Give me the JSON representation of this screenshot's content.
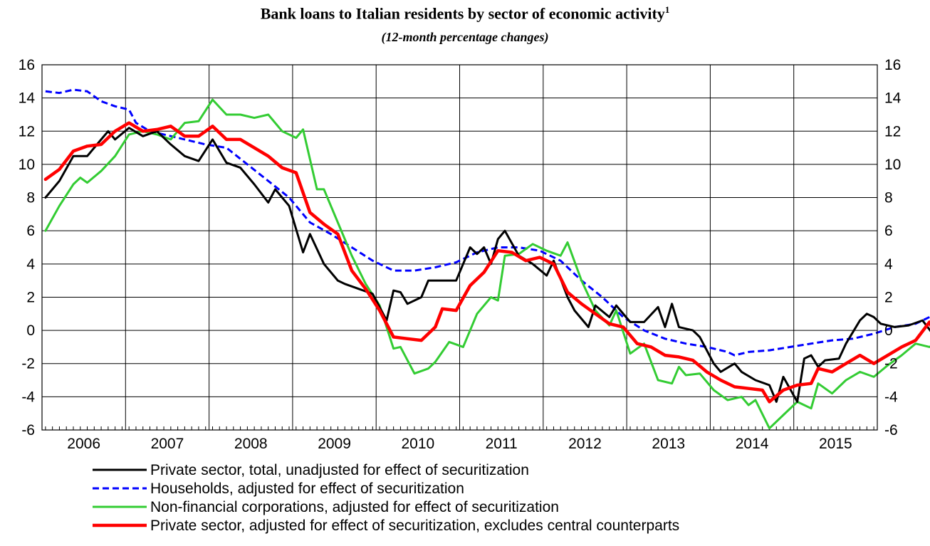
{
  "chart_data": {
    "type": "line",
    "title": "Bank loans to Italian residents by sector of economic activity",
    "title_footnote": "1",
    "subtitle": "(12-month percentage changes)",
    "ylim": [
      -6,
      16
    ],
    "yticks": [
      "-6",
      "-4",
      "-2",
      "0",
      "2",
      "4",
      "6",
      "8",
      "10",
      "12",
      "14",
      "16"
    ],
    "yticks_right": [
      "-6",
      "-4",
      "-2",
      "0",
      "2",
      "4",
      "6",
      "8",
      "10",
      "12",
      "14",
      "16"
    ],
    "x_start": "2006-01",
    "x_end": "2015-12",
    "year_labels": [
      "2006",
      "2007",
      "2008",
      "2009",
      "2010",
      "2011",
      "2012",
      "2013",
      "2014",
      "2015"
    ],
    "grid": true,
    "legend_position": "bottom",
    "series": [
      {
        "name": "Private sector, total, unadjusted for effect of securitization",
        "color": "#000000",
        "style": "solid",
        "points": [
          [
            "2006-01",
            8.0
          ],
          [
            "2006-03",
            9.0
          ],
          [
            "2006-05",
            10.5
          ],
          [
            "2006-07",
            10.5
          ],
          [
            "2006-09",
            11.5
          ],
          [
            "2006-10",
            12.0
          ],
          [
            "2006-11",
            11.5
          ],
          [
            "2007-01",
            12.2
          ],
          [
            "2007-03",
            11.7
          ],
          [
            "2007-05",
            12.0
          ],
          [
            "2007-07",
            11.2
          ],
          [
            "2007-09",
            10.5
          ],
          [
            "2007-11",
            10.2
          ],
          [
            "2008-01",
            11.5
          ],
          [
            "2008-03",
            10.1
          ],
          [
            "2008-05",
            9.8
          ],
          [
            "2008-07",
            8.8
          ],
          [
            "2008-09",
            7.7
          ],
          [
            "2008-10",
            8.5
          ],
          [
            "2008-12",
            7.5
          ],
          [
            "2009-02",
            4.7
          ],
          [
            "2009-03",
            5.8
          ],
          [
            "2009-05",
            4.0
          ],
          [
            "2009-07",
            3.0
          ],
          [
            "2009-08",
            2.8
          ],
          [
            "2009-10",
            2.5
          ],
          [
            "2009-12",
            2.2
          ],
          [
            "2010-02",
            0.6
          ],
          [
            "2010-03",
            2.4
          ],
          [
            "2010-04",
            2.3
          ],
          [
            "2010-05",
            1.6
          ],
          [
            "2010-07",
            2.0
          ],
          [
            "2010-08",
            3.0
          ],
          [
            "2010-10",
            3.0
          ],
          [
            "2010-12",
            3.0
          ],
          [
            "2011-01",
            4.0
          ],
          [
            "2011-02",
            5.0
          ],
          [
            "2011-03",
            4.6
          ],
          [
            "2011-04",
            5.0
          ],
          [
            "2011-05",
            4.0
          ],
          [
            "2011-06",
            5.5
          ],
          [
            "2011-07",
            6.0
          ],
          [
            "2011-09",
            4.5
          ],
          [
            "2011-11",
            4.0
          ],
          [
            "2012-01",
            3.3
          ],
          [
            "2012-02",
            4.2
          ],
          [
            "2012-04",
            2.0
          ],
          [
            "2012-05",
            1.2
          ],
          [
            "2012-07",
            0.2
          ],
          [
            "2012-08",
            1.5
          ],
          [
            "2012-10",
            0.8
          ],
          [
            "2012-11",
            1.5
          ],
          [
            "2013-01",
            0.5
          ],
          [
            "2013-03",
            0.5
          ],
          [
            "2013-05",
            1.4
          ],
          [
            "2013-06",
            0.2
          ],
          [
            "2013-07",
            1.6
          ],
          [
            "2013-08",
            0.2
          ],
          [
            "2013-10",
            0.0
          ],
          [
            "2013-11",
            -0.4
          ],
          [
            "2014-01",
            -2.0
          ],
          [
            "2014-02",
            -2.5
          ],
          [
            "2014-04",
            -2.0
          ],
          [
            "2014-05",
            -2.5
          ],
          [
            "2014-07",
            -3.0
          ],
          [
            "2014-09",
            -3.3
          ],
          [
            "2014-10",
            -4.3
          ],
          [
            "2014-11",
            -2.8
          ],
          [
            "2015-01",
            -4.3
          ],
          [
            "2015-02",
            -1.7
          ],
          [
            "2015-03",
            -1.5
          ],
          [
            "2015-04",
            -2.2
          ],
          [
            "2015-05",
            -1.8
          ],
          [
            "2015-07",
            -1.7
          ],
          [
            "2015-08",
            -0.8
          ],
          [
            "2015-10",
            0.6
          ],
          [
            "2015-11",
            1.0
          ],
          [
            "2015-12",
            0.8
          ],
          [
            "2016-01",
            0.4
          ],
          [
            "2016-03",
            0.2
          ],
          [
            "2016-05",
            0.3
          ],
          [
            "2016-07",
            0.6
          ],
          [
            "2016-09",
            -0.5
          ]
        ]
      },
      {
        "name": "Households, adjusted for effect of securitization",
        "color": "#0000ff",
        "style": "dashed",
        "points": [
          [
            "2006-01",
            14.4
          ],
          [
            "2006-03",
            14.3
          ],
          [
            "2006-05",
            14.5
          ],
          [
            "2006-07",
            14.4
          ],
          [
            "2006-09",
            13.8
          ],
          [
            "2006-11",
            13.5
          ],
          [
            "2007-01",
            13.3
          ],
          [
            "2007-02",
            12.5
          ],
          [
            "2007-04",
            12.0
          ],
          [
            "2007-06",
            11.8
          ],
          [
            "2007-09",
            11.5
          ],
          [
            "2007-12",
            11.2
          ],
          [
            "2008-03",
            11.0
          ],
          [
            "2008-06",
            10.0
          ],
          [
            "2008-09",
            9.0
          ],
          [
            "2008-12",
            8.0
          ],
          [
            "2009-03",
            6.5
          ],
          [
            "2009-06",
            5.8
          ],
          [
            "2009-09",
            5.0
          ],
          [
            "2009-12",
            4.2
          ],
          [
            "2010-03",
            3.6
          ],
          [
            "2010-06",
            3.6
          ],
          [
            "2010-09",
            3.8
          ],
          [
            "2010-12",
            4.1
          ],
          [
            "2011-03",
            4.7
          ],
          [
            "2011-06",
            5.0
          ],
          [
            "2011-09",
            5.0
          ],
          [
            "2011-12",
            4.8
          ],
          [
            "2012-03",
            4.2
          ],
          [
            "2012-06",
            3.0
          ],
          [
            "2012-09",
            2.0
          ],
          [
            "2012-12",
            0.8
          ],
          [
            "2013-03",
            0.0
          ],
          [
            "2013-06",
            -0.5
          ],
          [
            "2013-09",
            -0.8
          ],
          [
            "2013-12",
            -1.0
          ],
          [
            "2014-03",
            -1.3
          ],
          [
            "2014-04",
            -1.5
          ],
          [
            "2014-06",
            -1.3
          ],
          [
            "2014-09",
            -1.2
          ],
          [
            "2014-12",
            -1.0
          ],
          [
            "2015-03",
            -0.8
          ],
          [
            "2015-06",
            -0.6
          ],
          [
            "2015-09",
            -0.5
          ],
          [
            "2015-12",
            -0.2
          ],
          [
            "2016-03",
            0.2
          ],
          [
            "2016-06",
            0.4
          ],
          [
            "2016-08",
            0.8
          ],
          [
            "2016-09",
            0.7
          ]
        ]
      },
      {
        "name": "Non-financial corporations, adjusted for effect of securitization",
        "color": "#33cc33",
        "style": "solid",
        "points": [
          [
            "2006-01",
            6.0
          ],
          [
            "2006-03",
            7.5
          ],
          [
            "2006-05",
            8.8
          ],
          [
            "2006-06",
            9.2
          ],
          [
            "2006-07",
            8.9
          ],
          [
            "2006-09",
            9.6
          ],
          [
            "2006-11",
            10.5
          ],
          [
            "2007-01",
            11.8
          ],
          [
            "2007-03",
            12.0
          ],
          [
            "2007-05",
            11.8
          ],
          [
            "2007-07",
            11.5
          ],
          [
            "2007-09",
            12.5
          ],
          [
            "2007-11",
            12.6
          ],
          [
            "2008-01",
            13.9
          ],
          [
            "2008-03",
            13.0
          ],
          [
            "2008-05",
            13.0
          ],
          [
            "2008-07",
            12.8
          ],
          [
            "2008-09",
            13.0
          ],
          [
            "2008-11",
            12.0
          ],
          [
            "2009-01",
            11.6
          ],
          [
            "2009-02",
            12.1
          ],
          [
            "2009-04",
            8.5
          ],
          [
            "2009-05",
            8.5
          ],
          [
            "2009-07",
            6.5
          ],
          [
            "2009-09",
            4.5
          ],
          [
            "2009-11",
            2.8
          ],
          [
            "2010-01",
            1.5
          ],
          [
            "2010-03",
            -1.1
          ],
          [
            "2010-04",
            -1.0
          ],
          [
            "2010-06",
            -2.6
          ],
          [
            "2010-08",
            -2.3
          ],
          [
            "2010-09",
            -1.9
          ],
          [
            "2010-11",
            -0.7
          ],
          [
            "2011-01",
            -1.0
          ],
          [
            "2011-03",
            1.0
          ],
          [
            "2011-05",
            2.0
          ],
          [
            "2011-06",
            1.8
          ],
          [
            "2011-07",
            4.5
          ],
          [
            "2011-09",
            4.6
          ],
          [
            "2011-11",
            5.2
          ],
          [
            "2012-01",
            4.8
          ],
          [
            "2012-03",
            4.5
          ],
          [
            "2012-04",
            5.3
          ],
          [
            "2012-06",
            3.0
          ],
          [
            "2012-08",
            1.2
          ],
          [
            "2012-10",
            0.3
          ],
          [
            "2012-11",
            1.2
          ],
          [
            "2013-01",
            -1.4
          ],
          [
            "2013-03",
            -0.8
          ],
          [
            "2013-05",
            -3.0
          ],
          [
            "2013-07",
            -3.2
          ],
          [
            "2013-08",
            -2.2
          ],
          [
            "2013-09",
            -2.7
          ],
          [
            "2013-11",
            -2.6
          ],
          [
            "2014-01",
            -3.6
          ],
          [
            "2014-03",
            -4.2
          ],
          [
            "2014-05",
            -4.0
          ],
          [
            "2014-06",
            -4.5
          ],
          [
            "2014-07",
            -4.2
          ],
          [
            "2014-09",
            -5.9
          ],
          [
            "2014-11",
            -5.1
          ],
          [
            "2015-01",
            -4.3
          ],
          [
            "2015-03",
            -4.7
          ],
          [
            "2015-04",
            -3.2
          ],
          [
            "2015-06",
            -3.8
          ],
          [
            "2015-08",
            -3.0
          ],
          [
            "2015-10",
            -2.5
          ],
          [
            "2015-12",
            -2.8
          ],
          [
            "2016-02",
            -2.1
          ],
          [
            "2016-04",
            -1.5
          ],
          [
            "2016-06",
            -0.8
          ],
          [
            "2016-08",
            -1.0
          ],
          [
            "2016-09",
            -0.8
          ]
        ]
      },
      {
        "name": "Private sector, adjusted for effect of securitization, excludes central counterparts",
        "color": "#ff0000",
        "style": "solid",
        "points": [
          [
            "2006-01",
            9.1
          ],
          [
            "2006-03",
            9.7
          ],
          [
            "2006-05",
            10.8
          ],
          [
            "2006-07",
            11.1
          ],
          [
            "2006-09",
            11.2
          ],
          [
            "2006-11",
            12.0
          ],
          [
            "2007-01",
            12.5
          ],
          [
            "2007-03",
            12.0
          ],
          [
            "2007-05",
            12.1
          ],
          [
            "2007-07",
            12.3
          ],
          [
            "2007-09",
            11.7
          ],
          [
            "2007-11",
            11.7
          ],
          [
            "2008-01",
            12.3
          ],
          [
            "2008-03",
            11.5
          ],
          [
            "2008-05",
            11.5
          ],
          [
            "2008-07",
            11.0
          ],
          [
            "2008-09",
            10.5
          ],
          [
            "2008-11",
            9.8
          ],
          [
            "2009-01",
            9.5
          ],
          [
            "2009-03",
            7.1
          ],
          [
            "2009-05",
            6.4
          ],
          [
            "2009-07",
            5.8
          ],
          [
            "2009-09",
            3.6
          ],
          [
            "2009-11",
            2.5
          ],
          [
            "2010-01",
            1.2
          ],
          [
            "2010-03",
            -0.4
          ],
          [
            "2010-05",
            -0.5
          ],
          [
            "2010-07",
            -0.6
          ],
          [
            "2010-09",
            0.2
          ],
          [
            "2010-10",
            1.3
          ],
          [
            "2010-12",
            1.2
          ],
          [
            "2011-02",
            2.7
          ],
          [
            "2011-04",
            3.5
          ],
          [
            "2011-06",
            4.8
          ],
          [
            "2011-08",
            4.7
          ],
          [
            "2011-10",
            4.2
          ],
          [
            "2011-12",
            4.4
          ],
          [
            "2012-02",
            4.0
          ],
          [
            "2012-04",
            2.3
          ],
          [
            "2012-06",
            1.6
          ],
          [
            "2012-08",
            1.0
          ],
          [
            "2012-10",
            0.4
          ],
          [
            "2012-12",
            0.2
          ],
          [
            "2013-02",
            -0.8
          ],
          [
            "2013-04",
            -1.0
          ],
          [
            "2013-06",
            -1.5
          ],
          [
            "2013-08",
            -1.6
          ],
          [
            "2013-10",
            -1.8
          ],
          [
            "2013-12",
            -2.5
          ],
          [
            "2014-02",
            -3.0
          ],
          [
            "2014-04",
            -3.4
          ],
          [
            "2014-06",
            -3.5
          ],
          [
            "2014-08",
            -3.6
          ],
          [
            "2014-09",
            -4.3
          ],
          [
            "2014-11",
            -3.6
          ],
          [
            "2015-01",
            -3.3
          ],
          [
            "2015-03",
            -3.2
          ],
          [
            "2015-04",
            -2.3
          ],
          [
            "2015-06",
            -2.5
          ],
          [
            "2015-08",
            -2.0
          ],
          [
            "2015-10",
            -1.5
          ],
          [
            "2015-12",
            -2.0
          ],
          [
            "2016-02",
            -1.5
          ],
          [
            "2016-04",
            -1.0
          ],
          [
            "2016-06",
            -0.6
          ],
          [
            "2016-08",
            0.5
          ],
          [
            "2016-09",
            -0.5
          ]
        ]
      }
    ]
  }
}
